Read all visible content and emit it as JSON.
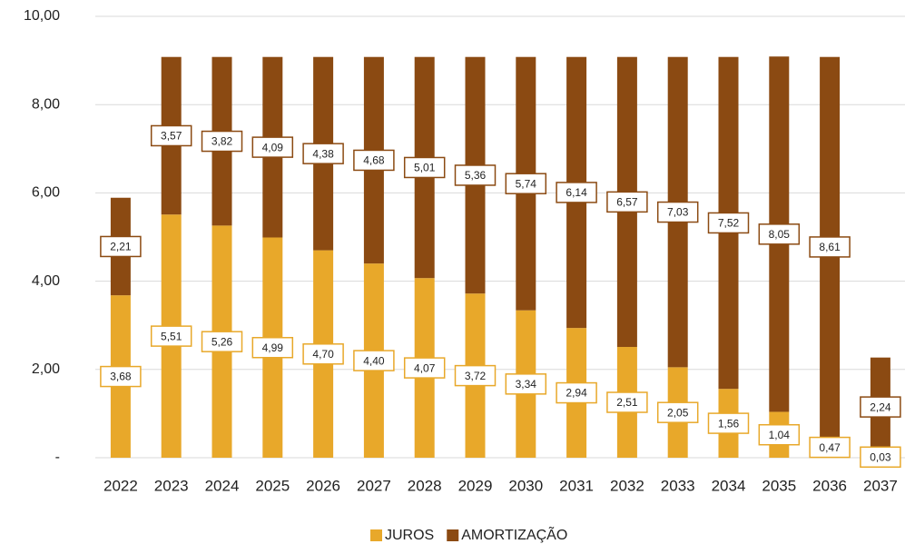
{
  "chart_data": {
    "type": "stacked_bar",
    "categories": [
      "2022",
      "2023",
      "2024",
      "2025",
      "2026",
      "2027",
      "2028",
      "2029",
      "2030",
      "2031",
      "2032",
      "2033",
      "2034",
      "2035",
      "2036",
      "2037"
    ],
    "series": [
      {
        "name": "JUROS",
        "color": "#e8a82a",
        "values": [
          3.68,
          5.51,
          5.26,
          4.99,
          4.7,
          4.4,
          4.07,
          3.72,
          3.34,
          2.94,
          2.51,
          2.05,
          1.56,
          1.04,
          0.47,
          0.03
        ],
        "value_labels": [
          "3,68",
          "5,51",
          "5,26",
          "4,99",
          "4,70",
          "4,40",
          "4,07",
          "3,72",
          "3,34",
          "2,94",
          "2,51",
          "2,05",
          "1,56",
          "1,04",
          "0,47",
          "0,03"
        ]
      },
      {
        "name": "AMORTIZAÇÃO",
        "color": "#8b4a12",
        "values": [
          2.21,
          3.57,
          3.82,
          4.09,
          4.38,
          4.68,
          5.01,
          5.36,
          5.74,
          6.14,
          6.57,
          7.03,
          7.52,
          8.05,
          8.61,
          2.24
        ],
        "value_labels": [
          "2,21",
          "3,57",
          "3,82",
          "4,09",
          "4,38",
          "4,68",
          "5,01",
          "5,36",
          "5,74",
          "6,14",
          "6,57",
          "7,03",
          "7,52",
          "8,05",
          "8,61",
          "2,24"
        ]
      }
    ],
    "ylim": [
      0,
      10
    ],
    "yticks": [
      {
        "value": 0,
        "label": "-"
      },
      {
        "value": 2,
        "label": "2,00"
      },
      {
        "value": 4,
        "label": "4,00"
      },
      {
        "value": 6,
        "label": "6,00"
      },
      {
        "value": 8,
        "label": "8,00"
      },
      {
        "value": 10,
        "label": "10,00"
      }
    ],
    "grid": true,
    "legend": "bottom"
  }
}
